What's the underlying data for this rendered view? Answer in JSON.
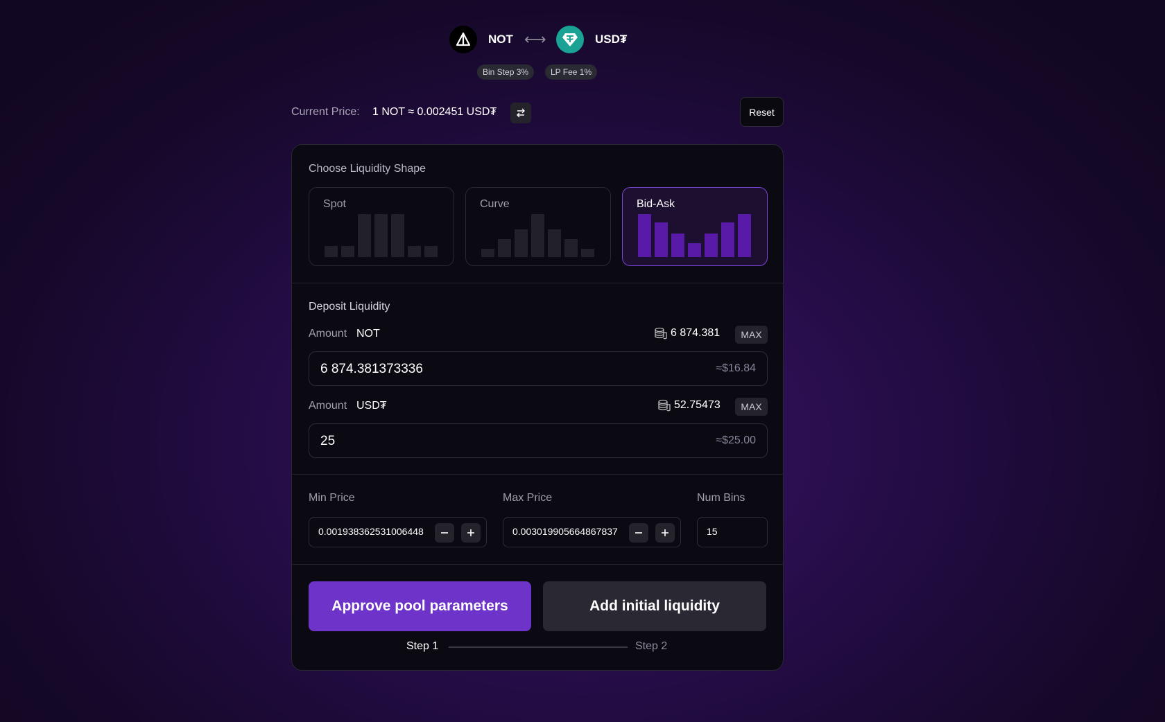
{
  "pair": {
    "base": "NOT",
    "quote": "USD₮",
    "base_icon": "not-triangle-icon",
    "quote_icon": "tether-icon",
    "swap_icon": "left-right-arrows-icon",
    "badges": {
      "bin_step": "Bin Step 3%",
      "lp_fee": "LP Fee 1%"
    }
  },
  "price": {
    "label": "Current Price:",
    "value": "1 NOT ≈ 0.002451 USD₮",
    "invert_icon": "invert-price-icon"
  },
  "reset_label": "Reset",
  "shape": {
    "title": "Choose Liquidity Shape",
    "options": [
      {
        "label": "Spot",
        "bars": [
          0.25,
          0.25,
          1.0,
          1.0,
          1.0,
          0.25,
          0.25
        ]
      },
      {
        "label": "Curve",
        "bars": [
          0.2,
          0.42,
          0.65,
          1.0,
          0.65,
          0.42,
          0.2
        ]
      },
      {
        "label": "Bid-Ask",
        "bars": [
          1.0,
          0.8,
          0.55,
          0.32,
          0.55,
          0.8,
          1.0
        ]
      }
    ],
    "selected": "Bid-Ask"
  },
  "deposit": {
    "title": "Deposit Liquidity",
    "amount_label": "Amount",
    "max_label": "MAX",
    "wallet_icon": "coins-icon",
    "base": {
      "token": "NOT",
      "balance": "6 874.381",
      "value": "6 874.381373336",
      "usd": "≈$16.84"
    },
    "quote": {
      "token": "USD₮",
      "balance": "52.75473",
      "value": "25",
      "usd": "≈$25.00"
    }
  },
  "range": {
    "min_label": "Min Price",
    "min_value": "0.001938362531006448",
    "max_label": "Max Price",
    "max_value": "0.003019905664867837",
    "bins_label": "Num Bins",
    "bins_value": "15",
    "minus_icon": "minus-icon",
    "plus_icon": "plus-icon"
  },
  "actions": {
    "approve": "Approve pool parameters",
    "add": "Add initial liquidity",
    "step1": "Step 1",
    "step2": "Step 2"
  },
  "colors": {
    "accent": "#6e34c9",
    "selected_bar": "#5a1aa8",
    "tether": "#1aa395"
  }
}
